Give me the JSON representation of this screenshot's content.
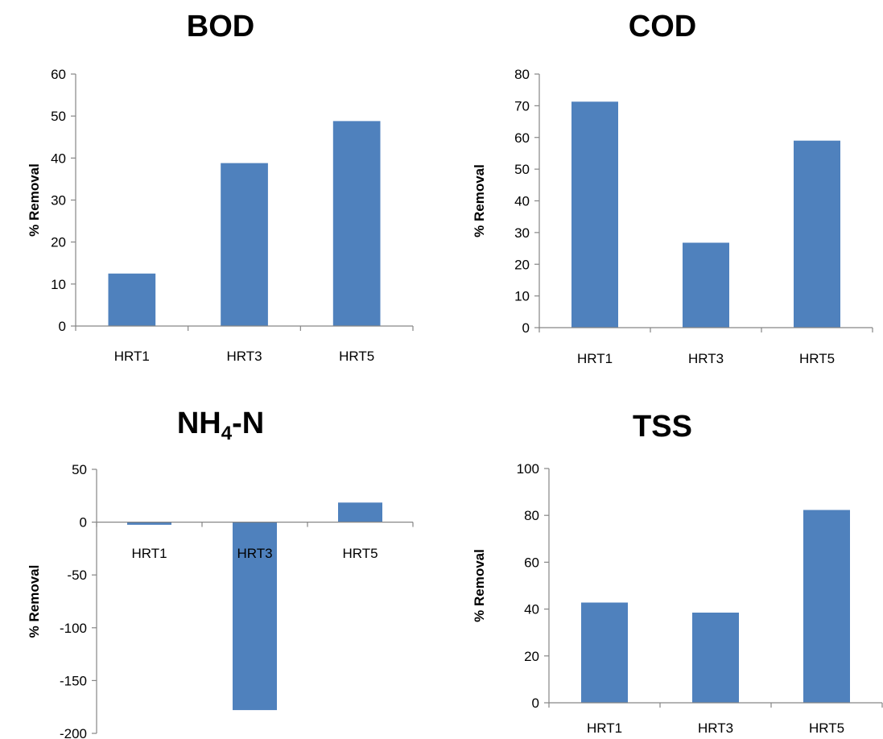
{
  "chart_data": [
    {
      "type": "bar",
      "title": "BOD",
      "title_main": "BOD",
      "title_sub": "",
      "title_rest": "",
      "ylabel": "% Removal",
      "xlabel": "",
      "categories": [
        "HRT1",
        "HRT3",
        "HRT5"
      ],
      "values": [
        12.5,
        38.8,
        48.8
      ],
      "ylim": [
        0,
        60
      ],
      "yticks": [
        0,
        10,
        20,
        30,
        40,
        50,
        60
      ],
      "grid": false,
      "legend": "none",
      "color": "#4f81bd"
    },
    {
      "type": "bar",
      "title": "COD",
      "title_main": "COD",
      "title_sub": "",
      "title_rest": "",
      "ylabel": "% Removal",
      "xlabel": "",
      "categories": [
        "HRT1",
        "HRT3",
        "HRT5"
      ],
      "values": [
        71.3,
        26.8,
        59
      ],
      "ylim": [
        0,
        80
      ],
      "yticks": [
        0,
        10,
        20,
        30,
        40,
        50,
        60,
        70,
        80
      ],
      "grid": false,
      "legend": "none",
      "color": "#4f81bd"
    },
    {
      "type": "bar",
      "title": "NH4-N",
      "title_main": "NH",
      "title_sub": "4",
      "title_rest": "-N",
      "ylabel": "% Removal",
      "xlabel": "",
      "categories": [
        "HRT1",
        "HRT3",
        "HRT5"
      ],
      "values": [
        -2.5,
        -178,
        18.5
      ],
      "ylim": [
        -200,
        50
      ],
      "yticks": [
        -200,
        -150,
        -100,
        -50,
        0,
        50
      ],
      "grid": false,
      "legend": "none",
      "color": "#4f81bd"
    },
    {
      "type": "bar",
      "title": "TSS",
      "title_main": "TSS",
      "title_sub": "",
      "title_rest": "",
      "ylabel": "% Removal",
      "xlabel": "",
      "categories": [
        "HRT1",
        "HRT3",
        "HRT5"
      ],
      "values": [
        42.8,
        38.5,
        82.3
      ],
      "ylim": [
        0,
        100
      ],
      "yticks": [
        0,
        20,
        40,
        60,
        80,
        100
      ],
      "grid": false,
      "legend": "none",
      "color": "#4f81bd"
    }
  ]
}
